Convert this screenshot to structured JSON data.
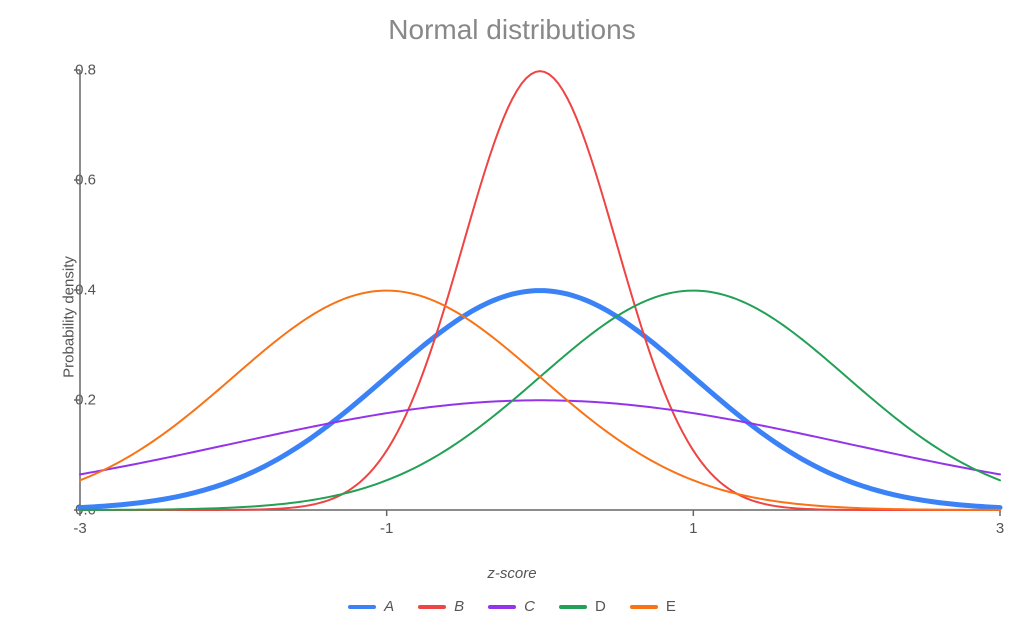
{
  "chart": {
    "type": "line",
    "title": "Normal distributions",
    "title_color": "#888888",
    "title_fontsize": 28,
    "background_color": "#ffffff",
    "xlabel": "z-score",
    "xlabel_italic": true,
    "ylabel": "Probability density",
    "label_fontsize": 15,
    "label_color": "#555555",
    "xlim": [
      -3,
      3
    ],
    "ylim": [
      0,
      0.8
    ],
    "xticks": [
      -3,
      -1,
      1,
      3
    ],
    "yticks": [
      0.0,
      0.2,
      0.4,
      0.6,
      0.8
    ],
    "axis_color": "#666666",
    "axis_width": 1.5,
    "series": [
      {
        "name": "A",
        "italic": true,
        "color": "#3b82f6",
        "line_width": 5,
        "mu": 0.0,
        "sigma": 1.0
      },
      {
        "name": "B",
        "italic": true,
        "color": "#ef4444",
        "line_width": 2,
        "mu": 0.0,
        "sigma": 0.5
      },
      {
        "name": "C",
        "italic": true,
        "color": "#9333ea",
        "line_width": 2,
        "mu": 0.0,
        "sigma": 2.0
      },
      {
        "name": "D",
        "italic": false,
        "color": "#22a055",
        "line_width": 2,
        "mu": 1.0,
        "sigma": 1.0
      },
      {
        "name": "E",
        "italic": false,
        "color": "#f97316",
        "line_width": 2,
        "mu": -1.0,
        "sigma": 1.0
      }
    ],
    "legend_swatch_width": 28,
    "legend_swatch_height": 4
  }
}
